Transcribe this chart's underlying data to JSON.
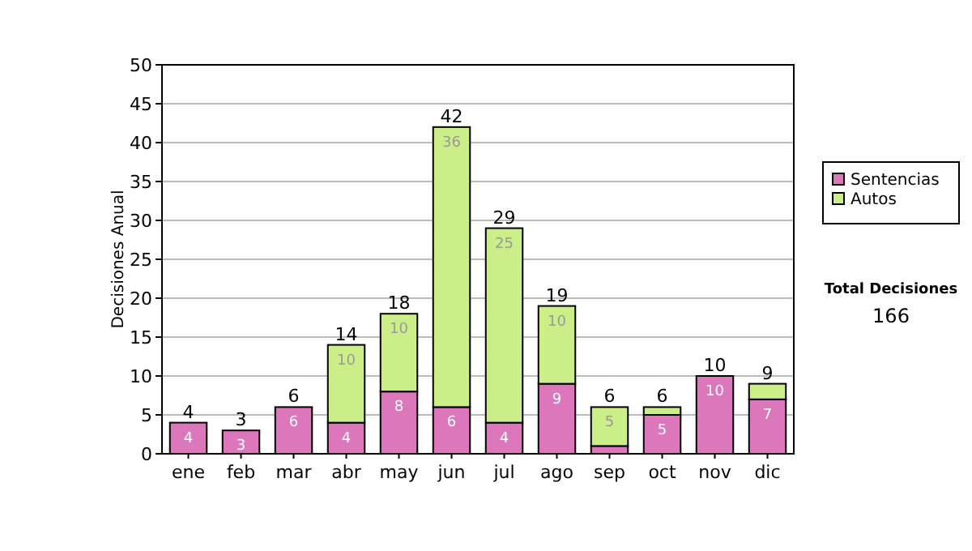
{
  "chart_data": {
    "type": "bar",
    "stacked": true,
    "ylabel": "Decisiones Anual",
    "categories": [
      "ene",
      "feb",
      "mar",
      "abr",
      "may",
      "jun",
      "jul",
      "ago",
      "sep",
      "oct",
      "nov",
      "dic"
    ],
    "series": [
      {
        "name": "Sentencias",
        "color": "#dd77bb",
        "values": [
          4,
          3,
          6,
          4,
          8,
          6,
          4,
          9,
          1,
          5,
          10,
          7
        ],
        "value_labels": [
          "4",
          "3",
          "6",
          "4",
          "8",
          "6",
          "4",
          "9",
          null,
          "5",
          "10",
          "7"
        ]
      },
      {
        "name": "Autos",
        "color": "#ccee88",
        "values": [
          0,
          0,
          0,
          10,
          10,
          36,
          25,
          10,
          5,
          1,
          0,
          2
        ],
        "value_labels": [
          null,
          null,
          null,
          "10",
          "10",
          "36",
          "25",
          "10",
          "5",
          null,
          null,
          null
        ]
      }
    ],
    "totals": [
      "4",
      "3",
      "6",
      "14",
      "18",
      "42",
      "29",
      "19",
      "6",
      "6",
      "10",
      "9"
    ],
    "ylim": [
      0,
      50
    ],
    "yticks": [
      0,
      5,
      10,
      15,
      20,
      25,
      30,
      35,
      40,
      45,
      50
    ],
    "grid": "y",
    "legend": "right",
    "annotations": [
      "Total Decisiones",
      "166"
    ]
  }
}
